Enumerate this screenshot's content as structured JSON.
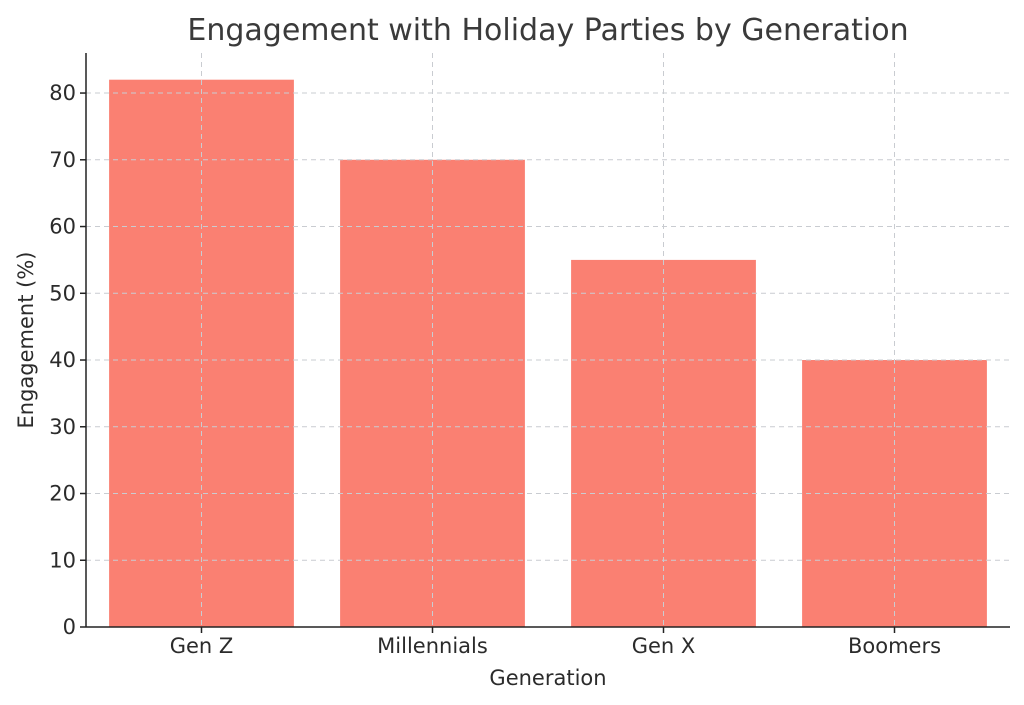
{
  "chart_data": {
    "type": "bar",
    "title": "Engagement with Holiday Parties by Generation",
    "xlabel": "Generation",
    "ylabel": "Engagement (%)",
    "categories": [
      "Gen Z",
      "Millennials",
      "Gen X",
      "Boomers"
    ],
    "values": [
      82,
      70,
      55,
      40
    ],
    "ylim": [
      0,
      86
    ],
    "yticks": [
      0,
      10,
      20,
      30,
      40,
      50,
      60,
      70,
      80
    ],
    "grid": true,
    "bar_color": "#fa8072",
    "grid_color": "#c9ccd1"
  }
}
